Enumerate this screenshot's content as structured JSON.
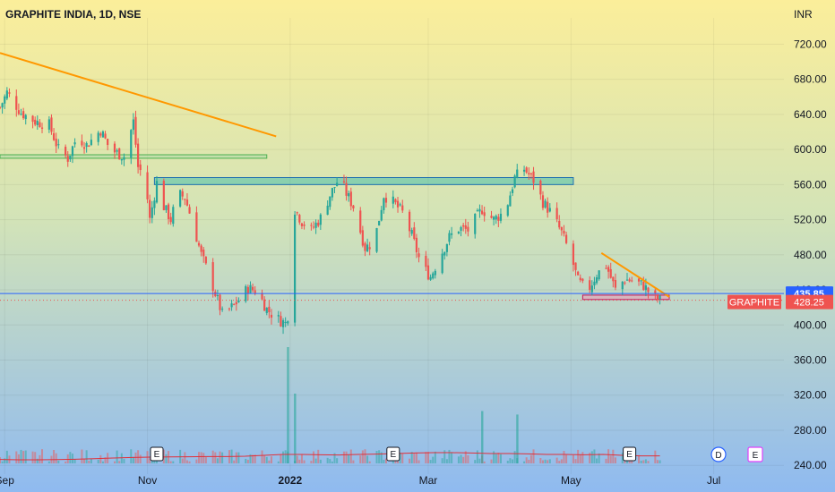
{
  "colors": {
    "up": "#26a69a",
    "down": "#ef5350",
    "trendline": "#ff9800",
    "zone_fill": "#2bb5a8",
    "zone_stroke": "#1e6fb0",
    "support_green": "#4caf50",
    "price_line": "#2962ff",
    "last_price_badge": "#ef5350",
    "volume_ma": "#e0303a"
  },
  "chart_data": {
    "type": "candlestick",
    "title": "GRAPHITE INDIA, 1D, NSE",
    "currency": "INR",
    "symbol_label": "GRAPHITE",
    "last_price": "428.25",
    "level_label": "435.85",
    "ylim": [
      230,
      750
    ],
    "y_ticks": [
      "240.00",
      "280.00",
      "320.00",
      "360.00",
      "400.00",
      "440.00",
      "480.00",
      "520.00",
      "560.00",
      "600.00",
      "640.00",
      "680.00",
      "720.00"
    ],
    "x_ticks": [
      {
        "label": "Sep",
        "date": "2021-09-01"
      },
      {
        "label": "Nov",
        "date": "2021-11-01"
      },
      {
        "label": "2022",
        "date": "2022-01-01"
      },
      {
        "label": "Mar",
        "date": "2022-03-01"
      },
      {
        "label": "May",
        "date": "2022-05-01"
      },
      {
        "label": "Jul",
        "date": "2022-07-01"
      }
    ],
    "date_range": [
      "2021-08-30",
      "2022-07-31"
    ],
    "price_path": [
      [
        "2021-08-30",
        648
      ],
      [
        "2021-09-02",
        665
      ],
      [
        "2021-09-08",
        642
      ],
      [
        "2021-09-14",
        632
      ],
      [
        "2021-09-20",
        628
      ],
      [
        "2021-09-24",
        600
      ],
      [
        "2021-09-28",
        590
      ],
      [
        "2021-10-02",
        615
      ],
      [
        "2021-10-06",
        605
      ],
      [
        "2021-10-12",
        622
      ],
      [
        "2021-10-16",
        600
      ],
      [
        "2021-10-22",
        592
      ],
      [
        "2021-10-26",
        632
      ],
      [
        "2021-10-28",
        580
      ],
      [
        "2021-10-31",
        568
      ],
      [
        "2021-11-02",
        520
      ],
      [
        "2021-11-05",
        562
      ],
      [
        "2021-11-08",
        535
      ],
      [
        "2021-11-11",
        520
      ],
      [
        "2021-11-14",
        550
      ],
      [
        "2021-11-17",
        545
      ],
      [
        "2021-11-20",
        520
      ],
      [
        "2021-11-24",
        480
      ],
      [
        "2021-11-28",
        452
      ],
      [
        "2021-12-03",
        412
      ],
      [
        "2021-12-08",
        422
      ],
      [
        "2021-12-14",
        442
      ],
      [
        "2021-12-18",
        438
      ],
      [
        "2021-12-22",
        418
      ],
      [
        "2021-12-26",
        408
      ],
      [
        "2021-12-30",
        402
      ],
      [
        "2022-01-01",
        420
      ],
      [
        "2022-01-03",
        532
      ],
      [
        "2022-01-06",
        518
      ],
      [
        "2022-01-10",
        508
      ],
      [
        "2022-01-14",
        522
      ],
      [
        "2022-01-18",
        548
      ],
      [
        "2022-01-22",
        568
      ],
      [
        "2022-01-25",
        550
      ],
      [
        "2022-01-28",
        535
      ],
      [
        "2022-02-02",
        488
      ],
      [
        "2022-02-06",
        495
      ],
      [
        "2022-02-10",
        548
      ],
      [
        "2022-02-14",
        540
      ],
      [
        "2022-02-18",
        528
      ],
      [
        "2022-02-22",
        502
      ],
      [
        "2022-02-26",
        468
      ],
      [
        "2022-03-02",
        455
      ],
      [
        "2022-03-06",
        478
      ],
      [
        "2022-03-10",
        500
      ],
      [
        "2022-03-14",
        510
      ],
      [
        "2022-03-18",
        508
      ],
      [
        "2022-03-24",
        532
      ],
      [
        "2022-03-29",
        520
      ],
      [
        "2022-04-03",
        530
      ],
      [
        "2022-04-07",
        568
      ],
      [
        "2022-04-11",
        578
      ],
      [
        "2022-04-15",
        565
      ],
      [
        "2022-04-19",
        540
      ],
      [
        "2022-04-23",
        526
      ],
      [
        "2022-04-27",
        505
      ],
      [
        "2022-05-01",
        478
      ],
      [
        "2022-05-04",
        450
      ],
      [
        "2022-05-08",
        438
      ],
      [
        "2022-05-12",
        458
      ],
      [
        "2022-05-16",
        468
      ],
      [
        "2022-05-20",
        440
      ],
      [
        "2022-05-24",
        452
      ],
      [
        "2022-05-28",
        450
      ],
      [
        "2022-06-01",
        445
      ],
      [
        "2022-06-05",
        432
      ],
      [
        "2022-06-08",
        428
      ]
    ],
    "annotations": {
      "trendline_top": {
        "from": [
          "2021-08-30",
          710
        ],
        "to": [
          "2021-12-26",
          615
        ]
      },
      "trendline_wedge": {
        "from": [
          "2022-05-14",
          482
        ],
        "to": [
          "2022-06-12",
          432
        ]
      },
      "resistance_zone": {
        "from_date": "2021-11-04",
        "to_date": "2022-05-02",
        "low": 560,
        "high": 568
      },
      "support_zone_green": {
        "from_date": "2021-08-30",
        "to_date": "2021-12-22",
        "low": 590,
        "high": 594
      },
      "support_zone_pink": {
        "from_date": "2022-05-06",
        "to_date": "2022-06-12",
        "low": 429,
        "high": 434
      },
      "price_level": 435.85
    },
    "volume": {
      "ma_values": [
        0.22,
        0.2,
        0.2,
        0.21,
        0.23,
        0.26,
        0.3,
        0.33,
        0.35,
        0.36,
        0.37,
        0.38,
        0.38,
        0.4,
        0.45,
        0.5,
        0.5,
        0.48,
        0.47,
        0.5,
        0.52,
        0.55,
        0.58,
        0.6,
        0.6,
        0.58,
        0.55,
        0.55,
        0.53,
        0.5,
        0.5,
        0.48,
        0.5,
        0.45,
        0.42,
        0.42
      ],
      "spikes": [
        {
          "date": "2021-12-31",
          "value": 1.0
        },
        {
          "date": "2022-01-03",
          "value": 0.6
        },
        {
          "date": "2022-03-24",
          "value": 0.45
        },
        {
          "date": "2022-04-08",
          "value": 0.42
        }
      ]
    },
    "events": [
      {
        "label": "E",
        "date": "2021-11-05"
      },
      {
        "label": "E",
        "date": "2022-02-14"
      },
      {
        "label": "E",
        "date": "2022-05-26"
      }
    ],
    "corner_badges": [
      {
        "label": "D",
        "color": "#2962ff",
        "shape": "circle"
      },
      {
        "label": "E",
        "color": "#e040fb",
        "shape": "square"
      }
    ]
  }
}
